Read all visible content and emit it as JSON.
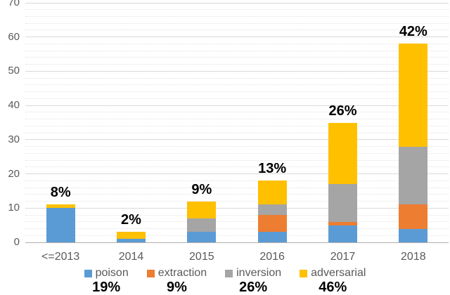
{
  "chart_data": {
    "type": "bar",
    "stacked": true,
    "title": "",
    "xlabel": "",
    "ylabel": "",
    "grid": true,
    "legend_position": "bottom",
    "categories": [
      "<=2013",
      "2014",
      "2015",
      "2016",
      "2017",
      "2018"
    ],
    "series": [
      {
        "name": "poison",
        "color": "#5B9BD5",
        "values": [
          10,
          1,
          3,
          3,
          5,
          4
        ],
        "share_label": "19%"
      },
      {
        "name": "extraction",
        "color": "#ED7D31",
        "values": [
          0,
          0,
          0,
          5,
          1,
          7
        ],
        "share_label": "9%"
      },
      {
        "name": "inversion",
        "color": "#A5A5A5",
        "values": [
          0,
          0,
          4,
          3,
          11,
          17
        ],
        "share_label": "26%"
      },
      {
        "name": "adversarial",
        "color": "#FFC000",
        "values": [
          1,
          2,
          5,
          7,
          18,
          30
        ],
        "share_label": "46%"
      }
    ],
    "bar_totals": [
      11,
      3,
      12,
      18,
      35,
      58
    ],
    "bar_percent_labels": [
      "8%",
      "2%",
      "9%",
      "13%",
      "26%",
      "42%"
    ],
    "y_axis": {
      "min": 0,
      "max": 70,
      "major_step": 10,
      "minor_step": 2,
      "tick_labels": [
        "0",
        "10",
        "20",
        "30",
        "40",
        "50",
        "60",
        "70"
      ]
    }
  },
  "colors": {
    "poison": "#5B9BD5",
    "extraction": "#ED7D31",
    "inversion": "#A5A5A5",
    "adversarial": "#FFC000",
    "axis_text": "#595959",
    "annotation_text": "#000000",
    "gridline_major": "#D9D9D9",
    "gridline_minor": "#E2E2E2",
    "background": "#FFFFFF"
  }
}
